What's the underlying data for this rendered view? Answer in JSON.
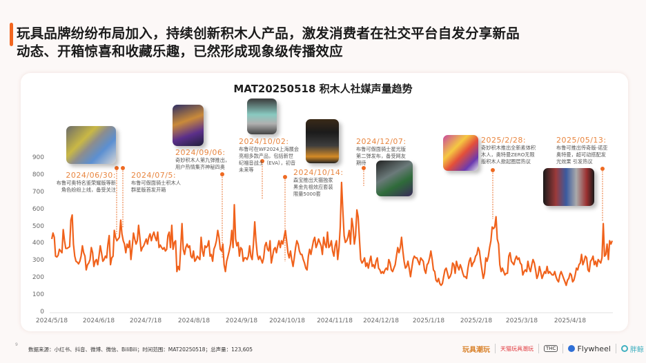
{
  "page": {
    "headline": "玩具品牌纷纷布局加入，持续创新积木人产品，激发消费者在社交平台自发分享新品动态、开箱惊喜和收藏乐趣，已然形成现象级传播效应",
    "headline_line1": "玩具品牌纷纷布局加入，持续创新积木人产品，激发消费者在社交平台自发分享新品",
    "headline_line2": "动态、开箱惊喜和收藏乐趣，已然形成现象级传播效应",
    "page_number": "9",
    "footnote": "数据来源：小红书、抖音、微博、微信、BiliBili；时间范围：MAT20250518；总声量：123,605",
    "logos": [
      "玩具潮玩",
      "天猫玩具潮玩",
      "THC",
      "Flywheel",
      "胖鲸"
    ],
    "accent_color": "#f2661f"
  },
  "chart_data": {
    "type": "line",
    "title": "MAT20250518 积木人社媒声量趋势",
    "xlabel": "",
    "ylabel": "",
    "ylim": [
      0,
      900
    ],
    "yticks": [
      "0",
      "100",
      "200",
      "300",
      "400",
      "500",
      "600",
      "700",
      "800",
      "900"
    ],
    "xticks": [
      "2024/5/18",
      "2024/6/18",
      "2024/7/18",
      "2024/8/18",
      "2024/9/18",
      "2024/10/18",
      "2024/11/18",
      "2024/12/18",
      "2025/1/18",
      "2025/2/18",
      "2025/3/18",
      "2025/4/18"
    ],
    "grid": false,
    "legend": "none",
    "series_color": "#f0621c",
    "series": [
      {
        "name": "声量",
        "values": [
          430,
          465,
          440,
          330,
          325,
          335,
          370,
          360,
          350,
          485,
          420,
          375,
          375,
          380,
          385,
          540,
          570,
          400,
          330,
          300,
          295,
          285,
          300,
          330,
          390,
          350,
          330,
          250,
          280,
          290,
          310,
          380,
          350,
          270,
          300,
          310,
          280,
          330,
          390,
          350,
          300,
          310,
          330,
          320,
          400,
          450,
          280,
          320,
          330,
          480,
          440,
          420,
          430,
          440,
          540,
          460,
          420,
          400,
          350,
          400,
          380,
          420,
          310,
          380,
          465,
          430,
          400,
          420,
          510,
          440,
          360,
          380,
          390,
          410,
          430,
          400,
          440,
          460,
          420,
          450,
          470,
          440,
          420,
          470,
          380,
          395,
          380,
          370,
          380,
          360,
          370,
          450,
          470,
          380,
          510,
          370,
          410,
          420,
          240,
          270,
          250,
          380,
          520,
          370,
          340,
          380,
          400,
          380,
          390,
          330,
          320,
          360,
          300,
          310,
          330,
          320,
          310,
          440,
          360,
          330,
          390,
          380,
          390,
          420,
          330,
          340,
          300,
          370,
          390,
          420,
          480,
          440,
          370,
          360,
          400,
          280,
          240,
          300,
          330,
          360,
          400,
          480,
          380,
          630,
          430,
          390,
          410,
          330,
          380,
          370,
          300,
          320,
          320,
          310,
          330,
          390,
          330,
          310,
          400,
          530,
          420,
          340,
          310,
          330,
          310,
          290,
          320,
          390,
          410,
          370,
          360,
          420,
          290,
          330,
          370,
          380,
          350,
          390,
          420,
          380,
          420,
          400,
          440,
          480,
          420,
          350,
          320,
          360,
          310,
          270,
          320,
          380,
          420,
          400,
          360,
          340,
          340,
          310,
          290,
          260,
          250,
          330,
          370,
          340,
          380,
          420,
          440,
          380,
          400,
          430,
          410,
          390,
          340,
          440,
          400,
          380,
          470,
          380,
          390,
          420,
          360,
          330,
          390,
          420,
          310,
          380,
          500,
          760,
          600,
          450,
          410,
          420,
          440,
          480,
          400,
          550,
          500,
          400,
          450,
          600,
          560,
          430,
          310,
          290,
          300,
          320,
          270,
          290,
          260,
          300,
          330,
          270,
          280,
          260,
          300,
          320,
          260,
          250,
          230,
          240,
          230,
          250,
          260,
          250,
          310,
          290,
          250,
          240,
          260,
          280,
          330,
          380,
          350,
          380,
          440,
          360,
          300,
          260,
          270,
          300,
          260,
          210,
          260,
          310,
          330,
          320,
          320,
          300,
          280,
          320,
          310,
          300,
          250,
          230,
          280,
          290,
          320,
          360,
          310,
          250,
          240,
          190,
          180,
          200,
          170,
          160,
          170,
          210,
          250,
          260,
          230,
          200,
          210,
          230,
          290,
          280,
          230,
          300,
          270,
          250,
          280,
          260,
          230,
          210,
          210,
          200,
          260,
          300,
          320,
          270,
          290,
          300,
          330,
          340,
          380,
          360,
          300,
          250,
          200,
          230,
          320,
          300,
          330,
          380,
          420,
          500,
          490,
          500,
          560,
          430,
          400,
          280,
          240,
          260,
          240,
          220,
          230,
          230,
          330,
          350,
          300,
          290,
          280,
          310,
          330,
          310,
          320,
          290,
          280,
          220,
          240,
          250,
          240,
          300,
          260,
          240,
          280,
          310,
          290,
          250,
          200,
          220,
          270,
          240,
          200,
          220,
          240,
          230,
          270,
          230,
          240,
          230,
          220,
          220,
          240,
          210,
          190,
          180,
          220,
          240,
          220,
          200,
          180,
          160,
          190,
          200,
          230,
          220,
          180,
          190,
          220,
          260,
          250,
          280,
          290,
          340,
          280,
          300,
          330,
          320,
          250,
          240,
          300,
          310,
          330,
          280,
          300,
          270,
          310,
          300,
          290,
          320,
          520,
          330,
          340,
          400,
          310,
          420,
          400,
          420
        ]
      }
    ],
    "annotations": [
      {
        "date": "2024/06/30:",
        "text_lines": [
          "布鲁可奥特名鉴荣耀版等新",
          "角色纷纷上线，备受关注"
        ]
      },
      {
        "date": "2024/07/5:",
        "text_lines": [
          "布鲁可假面骑士积木人",
          "群星版首发开箱"
        ]
      },
      {
        "date": "2024/09/06:",
        "text_lines": [
          "奇妙积木人第九弹推出，",
          "用户热情集齐神秘四奥"
        ]
      },
      {
        "date": "2024/10/02:",
        "text_lines": [
          "布鲁可在WF2024上海展会",
          "亮相多款产品，包括新世",
          "纪福音战士（EVA），初音",
          "未来等"
        ]
      },
      {
        "date": "2024/10/14:",
        "text_lines": [
          "森宝推出天猫独家",
          "黑金先祖效应套装",
          "限量5000套"
        ]
      },
      {
        "date": "2024/12/07:",
        "text_lines": [
          "布鲁可假面骑士星光版",
          "第二弹发布，备受网友",
          "期待"
        ]
      },
      {
        "date": "2025/2/28:",
        "text_lines": [
          "奇妙积木推出全新素体积",
          "木人，奥特曼ZERO无限",
          "版积木人掀起圈层热议"
        ]
      },
      {
        "date": "2025/05/13:",
        "text_lines": [
          "布鲁可推出传奇版-诺亚",
          "奥特曼，超可动搭配发",
          "光效果 引发热议"
        ]
      }
    ]
  }
}
